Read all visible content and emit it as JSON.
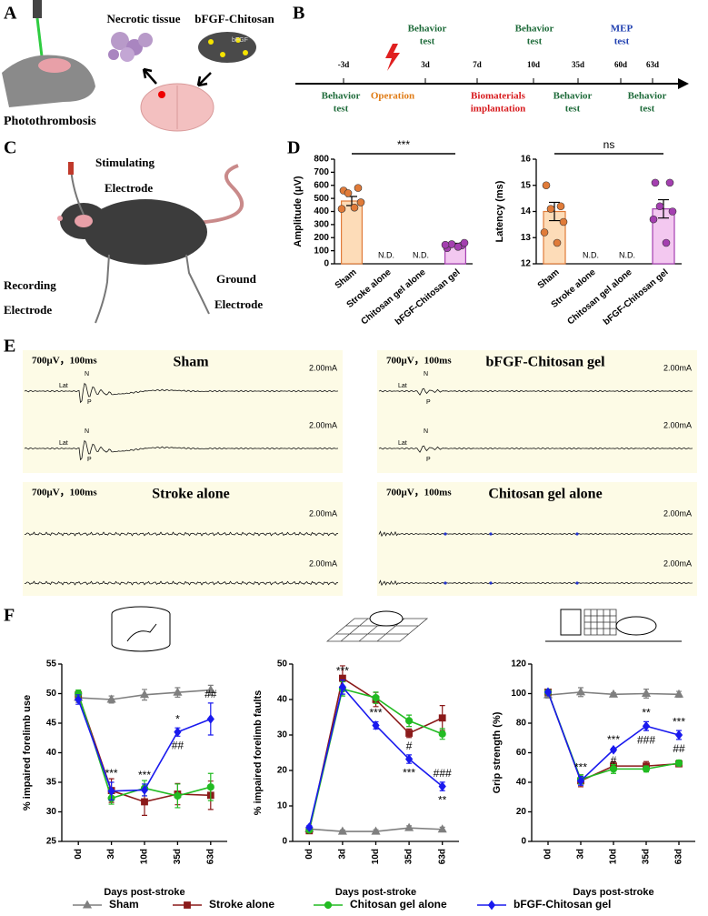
{
  "panel_a": {
    "label": "A",
    "necrotic": "Necrotic tissue",
    "bfgf": "bFGF-Chitosan",
    "gel_tag": "bFGF",
    "model": "Photothrombosis"
  },
  "panel_b": {
    "label": "B",
    "ticks": [
      "-3d",
      "3d",
      "7d",
      "10d",
      "35d",
      "60d",
      "63d"
    ],
    "above": [
      {
        "lines": [
          "Behavior",
          "test"
        ],
        "color": "#1e6b3a"
      },
      {
        "lines": [
          "Behavior",
          "test"
        ],
        "color": "#1e6b3a"
      },
      {
        "lines": [
          "MEP",
          "test"
        ],
        "color": "#1f3fb0"
      }
    ],
    "below": [
      {
        "lines": [
          "Behavior",
          "test"
        ],
        "color": "#1e6b3a"
      },
      {
        "lines": [
          "Operation"
        ],
        "color": "#e07b14"
      },
      {
        "lines": [
          "Biomaterials",
          "implantation"
        ],
        "color": "#d7191c"
      },
      {
        "lines": [
          "Behavior",
          "test"
        ],
        "color": "#1e6b3a"
      },
      {
        "lines": [
          "Behavior",
          "test"
        ],
        "color": "#1e6b3a"
      }
    ]
  },
  "panel_c": {
    "label": "C",
    "stimulating": [
      "Stimulating",
      "Electrode"
    ],
    "recording": [
      "Recording",
      "Electrode"
    ],
    "ground": [
      "Ground",
      "Electrode"
    ]
  },
  "panel_d": {
    "label": "D"
  },
  "panel_e": {
    "label": "E",
    "traces": [
      {
        "scale": "700μV，100ms",
        "title": "Sham",
        "currents": [
          "2.00mA",
          "2.00mA"
        ],
        "markers": [
          [
            "Lat",
            "N",
            "P"
          ],
          [
            "Lat",
            "N",
            "P"
          ]
        ]
      },
      {
        "scale": "700μV，100ms",
        "title": "bFGF-Chitosan gel",
        "currents": [
          "2.00mA",
          "2.00mA"
        ],
        "markers": [
          [
            "Lat",
            "N",
            "P"
          ],
          [
            "Lat",
            "N",
            "P"
          ]
        ]
      },
      {
        "scale": "700μV，100ms",
        "title": "Stroke alone",
        "currents": [
          "2.00mA",
          "2.00mA"
        ]
      },
      {
        "scale": "700μV，100ms",
        "title": "Chitosan gel alone",
        "currents": [
          "2.00mA",
          "2.00mA"
        ]
      }
    ]
  },
  "panel_f": {
    "label": "F"
  },
  "chart_data": [
    {
      "type": "bar",
      "ylabel": "Amplitude (μV)",
      "categories": [
        "Sham",
        "Stroke alone",
        "Chitosan gel alone",
        "bFGF-Chitosan gel"
      ],
      "values": [
        480,
        null,
        null,
        145
      ],
      "errors": [
        35,
        null,
        null,
        12
      ],
      "value_labels": [
        null,
        "N.D.",
        "N.D.",
        null
      ],
      "points": [
        [
          560,
          580,
          540,
          470,
          420,
          430
        ],
        null,
        null,
        [
          120,
          140,
          150,
          160,
          145,
          130
        ]
      ],
      "colors": [
        "#fddcb8",
        null,
        null,
        "#f3c8f0"
      ],
      "point_colors": [
        "#e07b39",
        null,
        null,
        "#a43fb0"
      ],
      "ylim": [
        0,
        800
      ],
      "yticks": [
        0,
        100,
        200,
        300,
        400,
        500,
        600,
        700,
        800
      ],
      "significance": "***"
    },
    {
      "type": "bar",
      "ylabel": "Latency (ms)",
      "categories": [
        "Sham",
        "Stroke alone",
        "Chitosan gel alone",
        "bFGF-Chitosan gel"
      ],
      "values": [
        14.0,
        null,
        null,
        14.1
      ],
      "errors": [
        0.35,
        null,
        null,
        0.35
      ],
      "value_labels": [
        null,
        "N.D.",
        "N.D.",
        null
      ],
      "points": [
        [
          15.0,
          14.2,
          14.1,
          13.6,
          13.2,
          12.8
        ],
        null,
        null,
        [
          15.1,
          15.1,
          14.2,
          14.0,
          13.7,
          12.8
        ]
      ],
      "colors": [
        "#fddcb8",
        null,
        null,
        "#f3c8f0"
      ],
      "point_colors": [
        "#e07b39",
        null,
        null,
        "#a43fb0"
      ],
      "ylim": [
        12,
        16
      ],
      "yticks": [
        12,
        13,
        14,
        15,
        16
      ],
      "significance": "ns"
    },
    {
      "type": "line",
      "ylabel": "% impaired forelimb use",
      "xlabel": "Days post-stroke",
      "categories": [
        "0d",
        "3d",
        "10d",
        "35d",
        "63d"
      ],
      "ylim": [
        25,
        55
      ],
      "yticks": [
        25,
        30,
        35,
        40,
        45,
        50,
        55
      ],
      "series": [
        {
          "name": "Sham",
          "color": "#7f7f7f",
          "marker": "triangle",
          "values": [
            49.3,
            49.0,
            49.8,
            50.2,
            50.6
          ],
          "errors": [
            0.8,
            0.6,
            0.9,
            0.8,
            0.8
          ]
        },
        {
          "name": "Stroke alone",
          "color": "#8b1a1a",
          "marker": "square",
          "values": [
            49.8,
            33.6,
            31.7,
            33.0,
            32.8
          ],
          "errors": [
            0.6,
            2.0,
            2.3,
            1.8,
            2.4
          ]
        },
        {
          "name": "Chitosan gel alone",
          "color": "#22bb22",
          "marker": "circle",
          "values": [
            50.0,
            32.3,
            34.0,
            32.7,
            34.2
          ],
          "errors": [
            0.6,
            1.0,
            1.3,
            2.0,
            2.3
          ]
        },
        {
          "name": "bFGF-Chitosan gel",
          "color": "#1a1aee",
          "marker": "diamond",
          "values": [
            49.0,
            33.5,
            33.7,
            43.5,
            45.7
          ],
          "errors": [
            0.8,
            1.5,
            1.0,
            0.7,
            2.7
          ]
        }
      ],
      "annotations": [
        [],
        [
          "***"
        ],
        [
          "***"
        ],
        [
          "*",
          "##"
        ],
        [
          "##"
        ]
      ]
    },
    {
      "type": "line",
      "ylabel": "% impaired forelimb faults",
      "xlabel": "Days post-stroke",
      "categories": [
        "0d",
        "3d",
        "10d",
        "35d",
        "63d"
      ],
      "ylim": [
        0,
        50
      ],
      "yticks": [
        0,
        10,
        20,
        30,
        40,
        50
      ],
      "series": [
        {
          "name": "Sham",
          "color": "#7f7f7f",
          "marker": "triangle",
          "values": [
            3.5,
            2.8,
            2.8,
            3.8,
            3.4
          ],
          "errors": [
            0.5,
            0.4,
            0.5,
            0.6,
            0.6
          ]
        },
        {
          "name": "Stroke alone",
          "color": "#8b1a1a",
          "marker": "square",
          "values": [
            3.0,
            46.0,
            40.0,
            30.5,
            34.8
          ],
          "errors": [
            0.5,
            3.5,
            2.0,
            1.2,
            3.5
          ]
        },
        {
          "name": "Chitosan gel alone",
          "color": "#22bb22",
          "marker": "circle",
          "values": [
            3.2,
            43.0,
            40.5,
            34.0,
            30.3
          ],
          "errors": [
            0.5,
            2.0,
            1.6,
            1.6,
            1.5
          ]
        },
        {
          "name": "bFGF-Chitosan gel",
          "color": "#1a1aee",
          "marker": "diamond",
          "values": [
            4.0,
            43.5,
            32.7,
            23.2,
            15.5
          ],
          "errors": [
            0.5,
            2.0,
            1.0,
            1.2,
            1.2
          ]
        }
      ],
      "annotations": [
        [],
        [
          "***"
        ],
        [
          "***"
        ],
        [
          "#",
          "***"
        ],
        [
          "###",
          "**"
        ]
      ]
    },
    {
      "type": "line",
      "ylabel": "Grip strength (%)",
      "xlabel": "Days post-stroke",
      "categories": [
        "0d",
        "3d",
        "10d",
        "35d",
        "63d"
      ],
      "ylim": [
        0,
        120
      ],
      "yticks": [
        0,
        20,
        40,
        60,
        80,
        100,
        120
      ],
      "series": [
        {
          "name": "Sham",
          "color": "#7f7f7f",
          "marker": "triangle",
          "values": [
            99,
            101,
            99.5,
            100,
            99.5
          ],
          "errors": [
            2,
            3,
            1,
            3,
            2
          ]
        },
        {
          "name": "Stroke alone",
          "color": "#8b1a1a",
          "marker": "square",
          "values": [
            101,
            41,
            51,
            51,
            52.5
          ],
          "errors": [
            1,
            4,
            3,
            3,
            2
          ]
        },
        {
          "name": "Chitosan gel alone",
          "color": "#22bb22",
          "marker": "circle",
          "values": [
            101,
            42,
            49,
            49,
            53
          ],
          "errors": [
            1,
            3,
            3,
            2,
            2
          ]
        },
        {
          "name": "bFGF-Chitosan gel",
          "color": "#1a1aee",
          "marker": "diamond",
          "values": [
            101,
            41,
            62,
            78,
            72
          ],
          "errors": [
            1,
            3,
            1,
            3,
            3
          ]
        }
      ],
      "annotations": [
        [],
        [
          "***"
        ],
        [
          "***",
          "#"
        ],
        [
          "**",
          "###"
        ],
        [
          "***",
          "##"
        ]
      ]
    }
  ]
}
